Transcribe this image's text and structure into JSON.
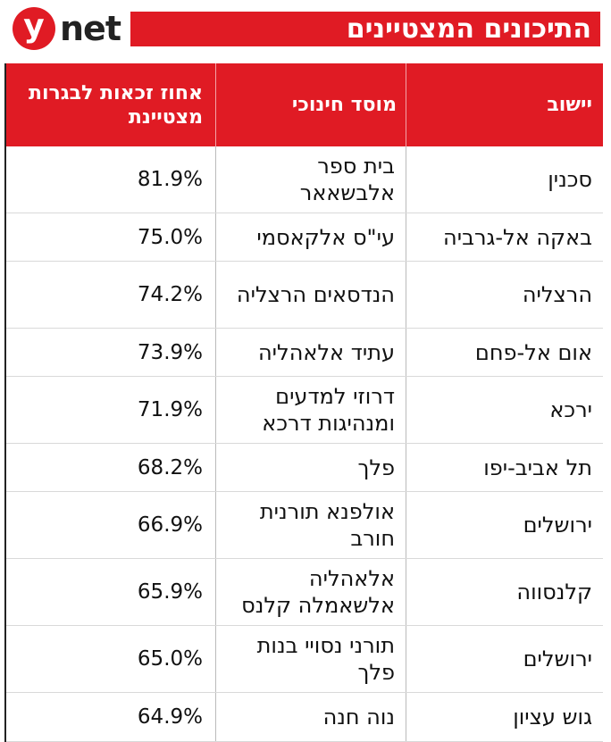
{
  "header": {
    "logo_letter": "y",
    "logo_word": "net",
    "title": "התיכונים המצטיינים"
  },
  "table": {
    "columns": [
      "יישוב",
      "מוסד חינוכי",
      "אחוז זכאות לבגרות מצטיינת"
    ],
    "rows": [
      {
        "city": "סכנין",
        "school": "בית ספר אלבשאאר",
        "pct": "81.9%"
      },
      {
        "city": "באקה אל-גרביה",
        "school": "עי\"ס אלקאסמי",
        "pct": "75.0%"
      },
      {
        "city": "הרצליה",
        "school": "הנדסאים הרצליה",
        "pct": "74.2%"
      },
      {
        "city": "אום אל-פחם",
        "school": "עתיד אלאהליה",
        "pct": "73.9%"
      },
      {
        "city": "ירכא",
        "school": "דרוזי למדעים ומנהיגות דרכא",
        "pct": "71.9%"
      },
      {
        "city": "תל אביב-יפו",
        "school": "פלך",
        "pct": "68.2%"
      },
      {
        "city": "ירושלים",
        "school": "אולפנא תורנית חורב",
        "pct": "66.9%"
      },
      {
        "city": "קלנסווה",
        "school": "אלאהליה אלשאמלה קלנס",
        "pct": "65.9%"
      },
      {
        "city": "ירושלים",
        "school": "תורני נסויי בנות פלך",
        "pct": "65.0%"
      },
      {
        "city": "גוש עציון",
        "school": "נוה חנה",
        "pct": "64.9%"
      }
    ]
  },
  "colors": {
    "accent": "#e01b24",
    "text": "#111111"
  }
}
